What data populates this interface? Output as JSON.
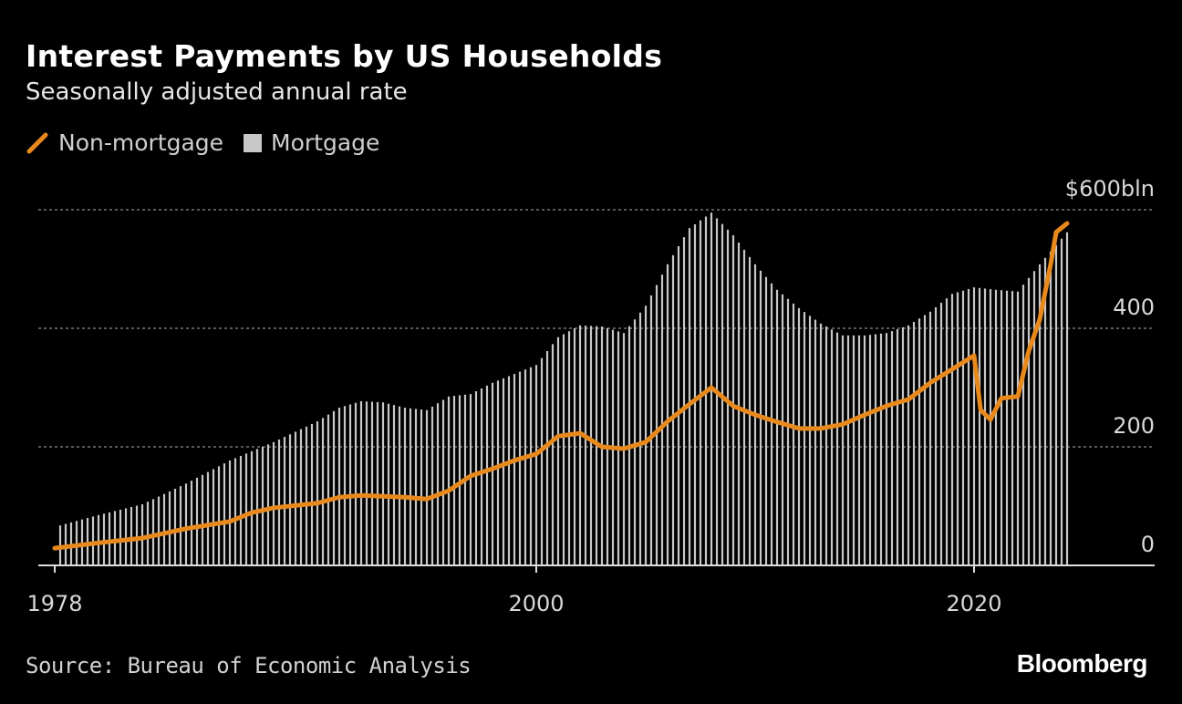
{
  "title": "Interest Payments by US Households",
  "subtitle": "Seasonally adjusted annual rate",
  "legend": [
    {
      "label": "Non-mortgage",
      "color": "#e8891d",
      "icon": "line-swatch"
    },
    {
      "label": "Mortgage",
      "color": "#c8c8c8",
      "icon": "square-swatch"
    }
  ],
  "source": "Source: Bureau of Economic Analysis",
  "logo": "Bloomberg",
  "chart_data": {
    "type": "bar+line",
    "title": "Interest Payments by US Households",
    "subtitle": "Seasonally adjusted annual rate",
    "ylim": [
      0,
      600
    ],
    "xlim": [
      1977.5,
      2026.5
    ],
    "y_ticks": [
      {
        "value": 0,
        "label": "0"
      },
      {
        "value": 200,
        "label": "200"
      },
      {
        "value": 400,
        "label": "400"
      },
      {
        "value": 600,
        "label": "$600bln"
      }
    ],
    "x_ticks": [
      {
        "value": 1978,
        "label": "1978"
      },
      {
        "value": 2000,
        "label": "2000"
      },
      {
        "value": 2020,
        "label": "2020"
      }
    ],
    "grid": "horizontal dotted",
    "legend_position": "top-left",
    "series": [
      {
        "name": "Mortgage",
        "type": "bar",
        "frequency": "quarterly",
        "color": "#c8c8c8",
        "x": [
          1978,
          1980,
          1982,
          1984,
          1986,
          1988,
          1990,
          1991,
          1992,
          1993,
          1994,
          1995,
          1996,
          1997,
          1998,
          1999,
          2000,
          2001,
          2002,
          2003,
          2004,
          2005,
          2006,
          2007,
          2008,
          2009,
          2010,
          2011,
          2012,
          2013,
          2014,
          2015,
          2016,
          2017,
          2018,
          2019,
          2020,
          2021,
          2022,
          2023,
          2024.25
        ],
        "values": [
          65,
          85,
          103,
          138,
          177,
          208,
          243,
          266,
          277,
          275,
          266,
          262,
          285,
          289,
          308,
          323,
          338,
          385,
          405,
          403,
          392,
          438,
          508,
          569,
          595,
          557,
          508,
          465,
          434,
          408,
          388,
          388,
          392,
          405,
          428,
          458,
          469,
          465,
          462,
          508,
          562
        ]
      },
      {
        "name": "Non-mortgage",
        "type": "line",
        "color": "#e8891d",
        "x": [
          1978,
          1980,
          1982,
          1984,
          1986,
          1987,
          1988,
          1990,
          1991,
          1992,
          1994,
          1995,
          1996,
          1997,
          1998,
          1999,
          2000,
          2001,
          2002,
          2003,
          2004,
          2005,
          2006,
          2007,
          2008,
          2009,
          2010,
          2011,
          2012,
          2013,
          2014,
          2015,
          2016,
          2017,
          2018,
          2019,
          2020,
          2020.3,
          2020.75,
          2021.25,
          2022,
          2022.5,
          2023,
          2023.5,
          2023.75,
          2024.25
        ],
        "values": [
          29,
          38,
          46,
          62,
          74,
          89,
          97,
          105,
          115,
          118,
          115,
          112,
          126,
          151,
          163,
          177,
          188,
          218,
          223,
          200,
          197,
          208,
          243,
          272,
          300,
          269,
          254,
          242,
          231,
          231,
          238,
          254,
          269,
          280,
          308,
          331,
          354,
          262,
          246,
          282,
          285,
          362,
          415,
          508,
          562,
          577
        ]
      }
    ]
  }
}
